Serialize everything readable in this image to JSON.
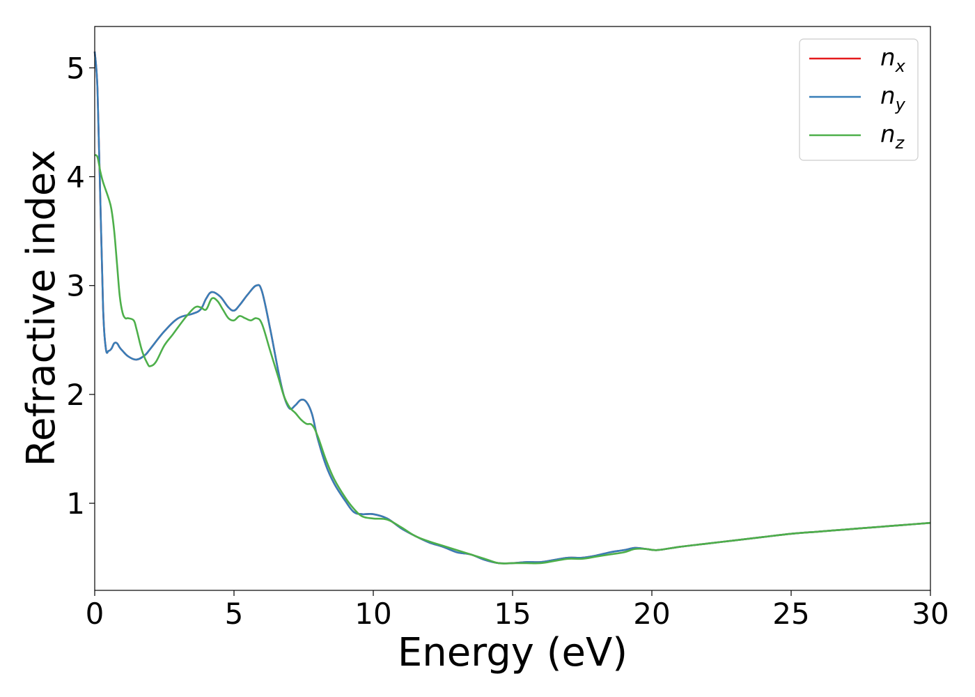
{
  "chart_data": {
    "type": "line",
    "xlabel": "Energy (eV)",
    "ylabel": "Refractive index",
    "xlim": [
      0,
      30
    ],
    "ylim": [
      0.2,
      5.38
    ],
    "grid": false,
    "legend_position": "top-right",
    "x_ticks": [
      {
        "value": 0,
        "label": "0"
      },
      {
        "value": 5,
        "label": "5"
      },
      {
        "value": 10,
        "label": "10"
      },
      {
        "value": 15,
        "label": "15"
      },
      {
        "value": 20,
        "label": "20"
      },
      {
        "value": 25,
        "label": "25"
      },
      {
        "value": 30,
        "label": "30"
      }
    ],
    "y_ticks": [
      {
        "value": 1,
        "label": "1"
      },
      {
        "value": 2,
        "label": "2"
      },
      {
        "value": 3,
        "label": "3"
      },
      {
        "value": 4,
        "label": "4"
      },
      {
        "value": 5,
        "label": "5"
      }
    ],
    "series": [
      {
        "base": "n",
        "sub": "x",
        "color": "#e41a1c",
        "x": [
          0,
          0.1,
          0.2,
          0.3,
          0.4,
          0.5,
          0.6,
          0.7,
          0.8,
          0.9,
          1.0,
          1.2,
          1.5,
          1.8,
          2.0,
          2.5,
          3.0,
          3.5,
          3.8,
          4.0,
          4.2,
          4.5,
          4.8,
          5.0,
          5.2,
          5.5,
          5.8,
          6.0,
          6.3,
          6.6,
          6.8,
          7.0,
          7.2,
          7.4,
          7.6,
          7.8,
          8.0,
          8.3,
          8.6,
          9.0,
          9.3,
          9.6,
          10.0,
          10.5,
          11.0,
          11.5,
          12.0,
          12.5,
          13.0,
          13.5,
          14.0,
          14.5,
          15.0,
          15.5,
          16.0,
          16.5,
          17.0,
          17.5,
          18.0,
          18.5,
          19.0,
          19.4,
          19.8,
          20.2,
          21.0,
          22.0,
          23.0,
          24.0,
          25.0,
          26.0,
          27.0,
          28.0,
          29.0,
          30.0
        ],
        "y": [
          5.15,
          4.8,
          3.8,
          2.8,
          2.42,
          2.4,
          2.42,
          2.47,
          2.47,
          2.43,
          2.4,
          2.35,
          2.32,
          2.36,
          2.42,
          2.58,
          2.7,
          2.74,
          2.78,
          2.88,
          2.94,
          2.9,
          2.8,
          2.77,
          2.82,
          2.92,
          3.0,
          2.95,
          2.6,
          2.2,
          1.98,
          1.87,
          1.9,
          1.95,
          1.93,
          1.82,
          1.6,
          1.35,
          1.18,
          1.02,
          0.92,
          0.9,
          0.9,
          0.86,
          0.77,
          0.7,
          0.64,
          0.6,
          0.55,
          0.53,
          0.48,
          0.45,
          0.45,
          0.46,
          0.46,
          0.48,
          0.5,
          0.5,
          0.52,
          0.55,
          0.57,
          0.59,
          0.58,
          0.57,
          0.6,
          0.63,
          0.66,
          0.69,
          0.72,
          0.74,
          0.76,
          0.78,
          0.8,
          0.82
        ]
      },
      {
        "base": "n",
        "sub": "y",
        "color": "#377eb8",
        "x": [
          0,
          0.1,
          0.2,
          0.3,
          0.4,
          0.5,
          0.6,
          0.7,
          0.8,
          0.9,
          1.0,
          1.2,
          1.5,
          1.8,
          2.0,
          2.5,
          3.0,
          3.5,
          3.8,
          4.0,
          4.2,
          4.5,
          4.8,
          5.0,
          5.2,
          5.5,
          5.8,
          6.0,
          6.3,
          6.6,
          6.8,
          7.0,
          7.2,
          7.4,
          7.6,
          7.8,
          8.0,
          8.3,
          8.6,
          9.0,
          9.3,
          9.6,
          10.0,
          10.5,
          11.0,
          11.5,
          12.0,
          12.5,
          13.0,
          13.5,
          14.0,
          14.5,
          15.0,
          15.5,
          16.0,
          16.5,
          17.0,
          17.5,
          18.0,
          18.5,
          19.0,
          19.4,
          19.8,
          20.2,
          21.0,
          22.0,
          23.0,
          24.0,
          25.0,
          26.0,
          27.0,
          28.0,
          29.0,
          30.0
        ],
        "y": [
          5.15,
          4.8,
          3.8,
          2.8,
          2.42,
          2.4,
          2.42,
          2.47,
          2.47,
          2.43,
          2.4,
          2.35,
          2.32,
          2.36,
          2.42,
          2.58,
          2.7,
          2.74,
          2.78,
          2.88,
          2.94,
          2.9,
          2.8,
          2.77,
          2.82,
          2.92,
          3.0,
          2.95,
          2.6,
          2.2,
          1.98,
          1.87,
          1.9,
          1.95,
          1.93,
          1.82,
          1.6,
          1.35,
          1.18,
          1.02,
          0.92,
          0.9,
          0.9,
          0.86,
          0.77,
          0.7,
          0.64,
          0.6,
          0.55,
          0.53,
          0.48,
          0.45,
          0.45,
          0.46,
          0.46,
          0.48,
          0.5,
          0.5,
          0.52,
          0.55,
          0.57,
          0.59,
          0.58,
          0.57,
          0.6,
          0.63,
          0.66,
          0.69,
          0.72,
          0.74,
          0.76,
          0.78,
          0.8,
          0.82
        ]
      },
      {
        "base": "n",
        "sub": "z",
        "color": "#4daf4a",
        "x": [
          0,
          0.1,
          0.2,
          0.3,
          0.5,
          0.6,
          0.7,
          0.8,
          0.9,
          1.0,
          1.1,
          1.2,
          1.4,
          1.5,
          1.7,
          1.9,
          2.0,
          2.2,
          2.5,
          2.8,
          3.0,
          3.3,
          3.6,
          3.8,
          4.0,
          4.2,
          4.4,
          4.6,
          4.8,
          5.0,
          5.2,
          5.4,
          5.6,
          5.8,
          6.0,
          6.3,
          6.6,
          6.8,
          7.0,
          7.2,
          7.4,
          7.6,
          7.8,
          8.0,
          8.3,
          8.6,
          9.0,
          9.3,
          9.6,
          10.0,
          10.5,
          11.0,
          11.5,
          12.0,
          12.5,
          13.0,
          13.5,
          14.0,
          14.5,
          15.0,
          15.5,
          16.0,
          16.5,
          17.0,
          17.5,
          18.0,
          18.5,
          19.0,
          19.4,
          19.8,
          20.2,
          21.0,
          22.0,
          23.0,
          24.0,
          25.0,
          26.0,
          27.0,
          28.0,
          29.0,
          30.0
        ],
        "y": [
          4.2,
          4.18,
          4.05,
          3.95,
          3.8,
          3.7,
          3.5,
          3.2,
          2.9,
          2.75,
          2.7,
          2.7,
          2.68,
          2.6,
          2.4,
          2.28,
          2.26,
          2.3,
          2.45,
          2.55,
          2.62,
          2.72,
          2.8,
          2.8,
          2.78,
          2.88,
          2.86,
          2.78,
          2.7,
          2.68,
          2.72,
          2.7,
          2.68,
          2.7,
          2.65,
          2.4,
          2.15,
          1.98,
          1.88,
          1.83,
          1.77,
          1.73,
          1.72,
          1.62,
          1.4,
          1.22,
          1.05,
          0.95,
          0.88,
          0.86,
          0.85,
          0.78,
          0.7,
          0.65,
          0.61,
          0.57,
          0.53,
          0.49,
          0.45,
          0.45,
          0.45,
          0.45,
          0.47,
          0.49,
          0.49,
          0.51,
          0.53,
          0.55,
          0.58,
          0.58,
          0.57,
          0.6,
          0.63,
          0.66,
          0.69,
          0.72,
          0.74,
          0.76,
          0.78,
          0.8,
          0.82
        ]
      }
    ]
  }
}
